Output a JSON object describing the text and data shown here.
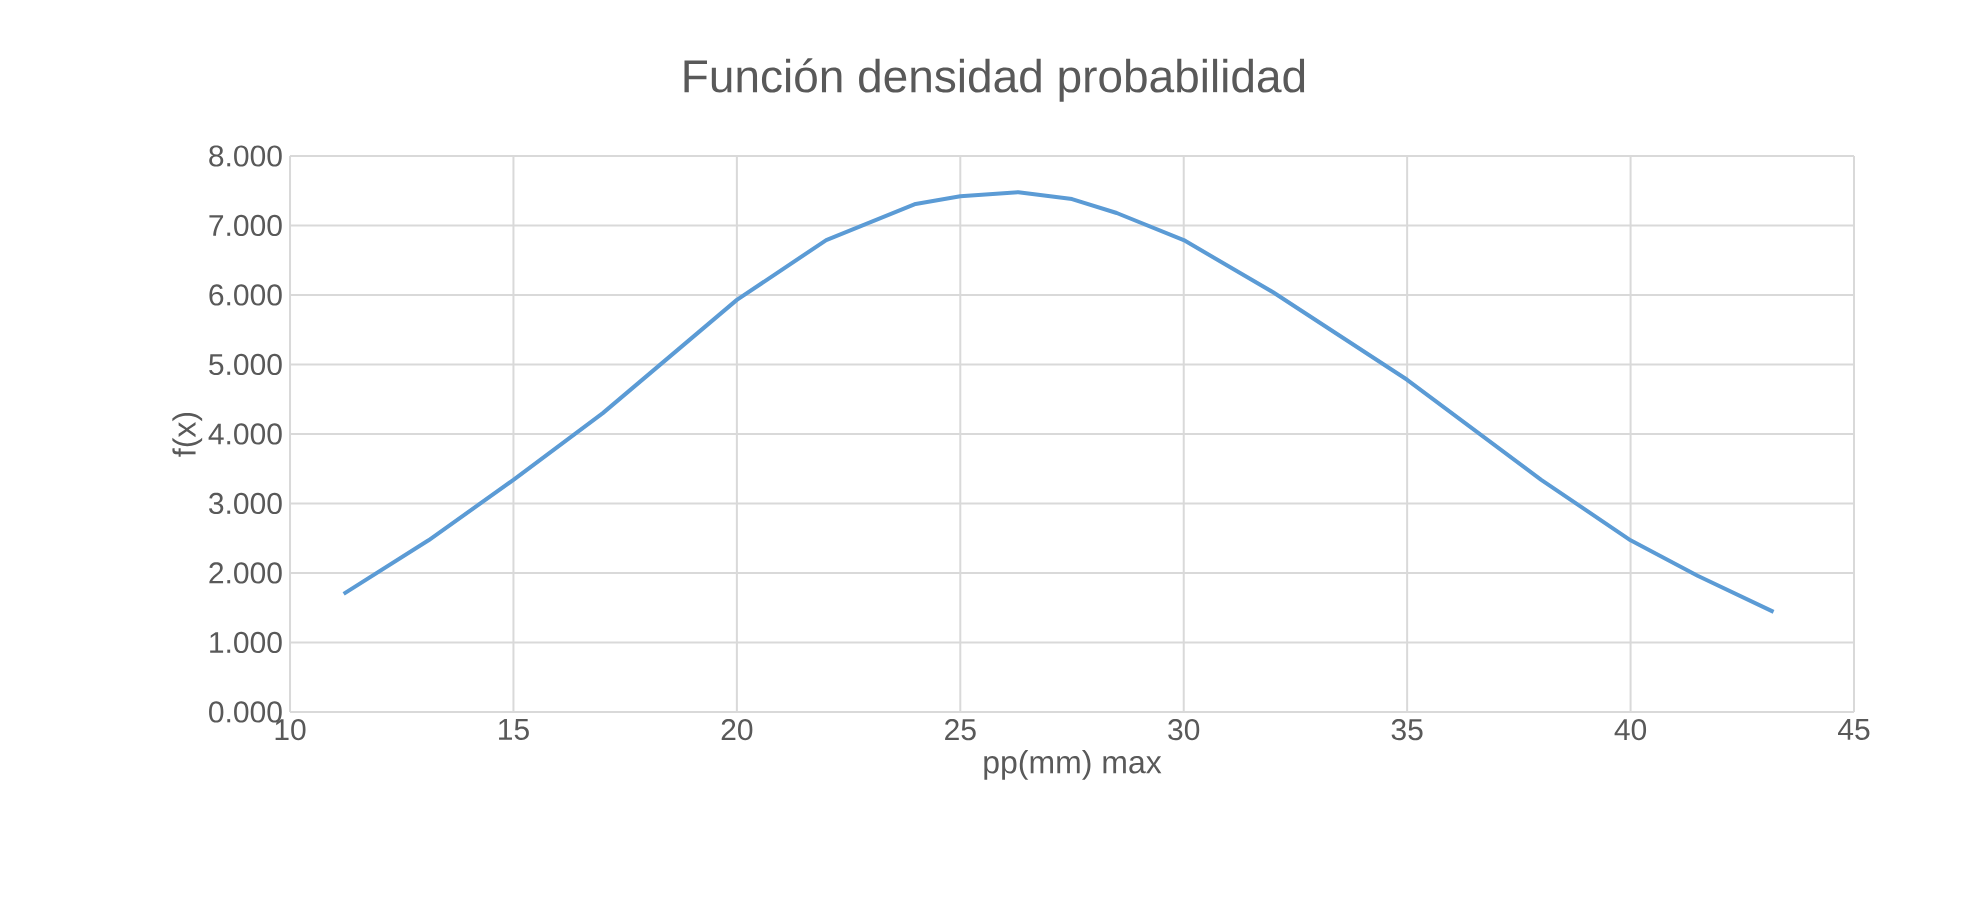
{
  "chart_data": {
    "type": "line",
    "title": "Función densidad probabilidad",
    "xlabel": "pp(mm) max",
    "ylabel": "f(x)",
    "x": [
      11.2,
      13.1,
      15.0,
      17.0,
      20.0,
      22.0,
      24.0,
      25.0,
      26.3,
      27.5,
      28.5,
      30.0,
      32.0,
      35.0,
      38.0,
      40.0,
      41.5,
      43.2
    ],
    "values": [
      1.7,
      2.47,
      3.34,
      4.3,
      5.93,
      6.79,
      7.31,
      7.42,
      7.48,
      7.38,
      7.18,
      6.79,
      6.04,
      4.78,
      3.34,
      2.47,
      1.96,
      1.44
    ],
    "color": "#5b9bd5",
    "xlim": [
      10,
      45
    ],
    "ylim": [
      0,
      8
    ],
    "xticks": [
      10,
      15,
      20,
      25,
      30,
      35,
      40,
      45
    ],
    "yticks": [
      {
        "value": 0,
        "label": "0.000"
      },
      {
        "value": 1,
        "label": "1.000"
      },
      {
        "value": 2,
        "label": "2.000"
      },
      {
        "value": 3,
        "label": "3.000"
      },
      {
        "value": 4,
        "label": "4.000"
      },
      {
        "value": 5,
        "label": "5.000"
      },
      {
        "value": 6,
        "label": "6.000"
      },
      {
        "value": 7,
        "label": "7.000"
      },
      {
        "value": 8,
        "label": "8.000"
      }
    ],
    "grid": true
  }
}
